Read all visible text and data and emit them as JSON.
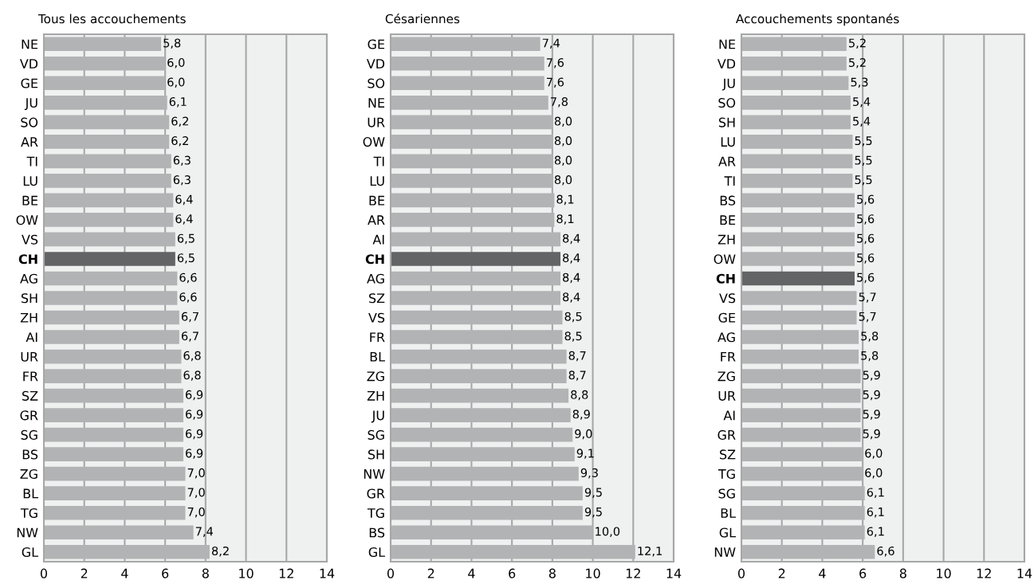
{
  "chart_data": [
    {
      "type": "bar",
      "orientation": "horizontal",
      "title": "Tous les accouchements",
      "grid": "x",
      "xlim": [
        0,
        14
      ],
      "xticks": [
        0,
        2,
        4,
        6,
        8,
        10,
        12,
        14
      ],
      "categories": [
        "NE",
        "VD",
        "GE",
        "JU",
        "SO",
        "AR",
        "TI",
        "LU",
        "BE",
        "OW",
        "VS",
        "CH",
        "AG",
        "SH",
        "ZH",
        "AI",
        "UR",
        "FR",
        "SZ",
        "GR",
        "SG",
        "BS",
        "ZG",
        "BL",
        "TG",
        "NW",
        "GL"
      ],
      "values": [
        5.8,
        6.0,
        6.0,
        6.1,
        6.2,
        6.2,
        6.3,
        6.3,
        6.4,
        6.4,
        6.5,
        6.5,
        6.6,
        6.6,
        6.7,
        6.7,
        6.8,
        6.8,
        6.9,
        6.9,
        6.9,
        6.9,
        7.0,
        7.0,
        7.0,
        7.4,
        8.2
      ],
      "value_labels": [
        "5,8",
        "6,0",
        "6,0",
        "6,1",
        "6,2",
        "6,2",
        "6,3",
        "6,3",
        "6,4",
        "6,4",
        "6,5",
        "6,5",
        "6,6",
        "6,6",
        "6,7",
        "6,7",
        "6,8",
        "6,8",
        "6,9",
        "6,9",
        "6,9",
        "6,9",
        "7,0",
        "7,0",
        "7,0",
        "7,4",
        "8,2"
      ],
      "colors": [
        "#b2b3b4",
        "#b2b3b4",
        "#b2b3b4",
        "#b2b3b4",
        "#b2b3b4",
        "#b2b3b4",
        "#b2b3b4",
        "#b2b3b4",
        "#b2b3b4",
        "#b2b3b4",
        "#b2b3b4",
        "#636466",
        "#b2b3b4",
        "#b2b3b4",
        "#b2b3b4",
        "#b2b3b4",
        "#b2b3b4",
        "#b2b3b4",
        "#b2b3b4",
        "#b2b3b4",
        "#b2b3b4",
        "#b2b3b4",
        "#b2b3b4",
        "#b2b3b4",
        "#b2b3b4",
        "#b2b3b4",
        "#b2b3b4"
      ]
    },
    {
      "type": "bar",
      "orientation": "horizontal",
      "title": "Césariennes",
      "grid": "x",
      "xlim": [
        0,
        14
      ],
      "xticks": [
        0,
        2,
        4,
        6,
        8,
        10,
        12,
        14
      ],
      "categories": [
        "GE",
        "VD",
        "SO",
        "NE",
        "UR",
        "OW",
        "TI",
        "LU",
        "BE",
        "AR",
        "AI",
        "CH",
        "AG",
        "SZ",
        "VS",
        "FR",
        "BL",
        "ZG",
        "ZH",
        "JU",
        "SG",
        "SH",
        "NW",
        "GR",
        "TG",
        "BS",
        "GL"
      ],
      "values": [
        7.4,
        7.6,
        7.6,
        7.8,
        8.0,
        8.0,
        8.0,
        8.0,
        8.1,
        8.1,
        8.4,
        8.4,
        8.4,
        8.4,
        8.5,
        8.5,
        8.7,
        8.7,
        8.8,
        8.9,
        9.0,
        9.1,
        9.3,
        9.5,
        9.5,
        10.0,
        12.1
      ],
      "value_labels": [
        "7,4",
        "7,6",
        "7,6",
        "7,8",
        "8,0",
        "8,0",
        "8,0",
        "8,0",
        "8,1",
        "8,1",
        "8,4",
        "8,4",
        "8,4",
        "8,4",
        "8,5",
        "8,5",
        "8,7",
        "8,7",
        "8,8",
        "8,9",
        "9,0",
        "9,1",
        "9,3",
        "9,5",
        "9,5",
        "10,0",
        "12,1"
      ],
      "colors": [
        "#b2b3b4",
        "#b2b3b4",
        "#b2b3b4",
        "#b2b3b4",
        "#b2b3b4",
        "#b2b3b4",
        "#b2b3b4",
        "#b2b3b4",
        "#b2b3b4",
        "#b2b3b4",
        "#b2b3b4",
        "#636466",
        "#b2b3b4",
        "#b2b3b4",
        "#b2b3b4",
        "#b2b3b4",
        "#b2b3b4",
        "#b2b3b4",
        "#b2b3b4",
        "#b2b3b4",
        "#b2b3b4",
        "#b2b3b4",
        "#b2b3b4",
        "#b2b3b4",
        "#b2b3b4",
        "#b2b3b4",
        "#b2b3b4"
      ]
    },
    {
      "type": "bar",
      "orientation": "horizontal",
      "title": "Accouchements spontanés",
      "grid": "x",
      "xlim": [
        0,
        14
      ],
      "xticks": [
        0,
        2,
        4,
        6,
        8,
        10,
        12,
        14
      ],
      "categories": [
        "NE",
        "VD",
        "JU",
        "SO",
        "SH",
        "LU",
        "AR",
        "TI",
        "BS",
        "BE",
        "ZH",
        "OW",
        "CH",
        "VS",
        "GE",
        "AG",
        "FR",
        "ZG",
        "UR",
        "AI",
        "GR",
        "SZ",
        "TG",
        "SG",
        "BL",
        "GL",
        "NW"
      ],
      "values": [
        5.2,
        5.2,
        5.3,
        5.4,
        5.4,
        5.5,
        5.5,
        5.5,
        5.6,
        5.6,
        5.6,
        5.6,
        5.6,
        5.7,
        5.7,
        5.8,
        5.8,
        5.9,
        5.9,
        5.9,
        5.9,
        6.0,
        6.0,
        6.1,
        6.1,
        6.1,
        6.6
      ],
      "value_labels": [
        "5,2",
        "5,2",
        "5,3",
        "5,4",
        "5,4",
        "5,5",
        "5,5",
        "5,5",
        "5,6",
        "5,6",
        "5,6",
        "5,6",
        "5,6",
        "5,7",
        "5,7",
        "5,8",
        "5,8",
        "5,9",
        "5,9",
        "5,9",
        "5,9",
        "6,0",
        "6,0",
        "6,1",
        "6,1",
        "6,1",
        "6,6"
      ],
      "colors": [
        "#b2b3b4",
        "#b2b3b4",
        "#b2b3b4",
        "#b2b3b4",
        "#b2b3b4",
        "#b2b3b4",
        "#b2b3b4",
        "#b2b3b4",
        "#b2b3b4",
        "#b2b3b4",
        "#b2b3b4",
        "#b2b3b4",
        "#636466",
        "#b2b3b4",
        "#b2b3b4",
        "#b2b3b4",
        "#b2b3b4",
        "#b2b3b4",
        "#b2b3b4",
        "#b2b3b4",
        "#b2b3b4",
        "#b2b3b4",
        "#b2b3b4",
        "#b2b3b4",
        "#b2b3b4",
        "#b2b3b4",
        "#b2b3b4"
      ]
    }
  ]
}
